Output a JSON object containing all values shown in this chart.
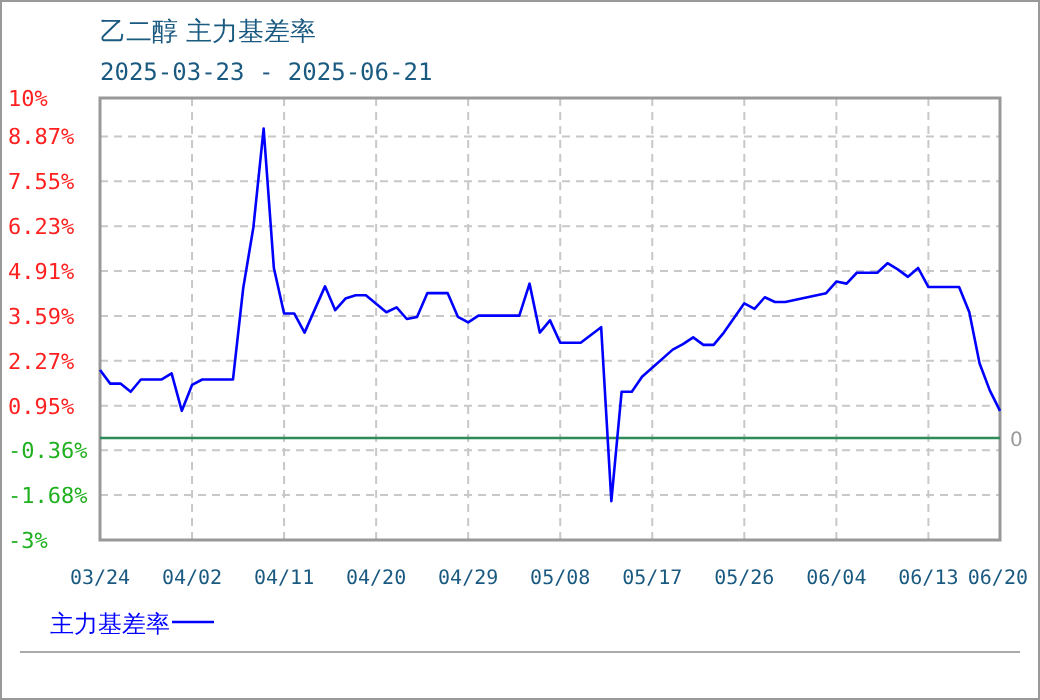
{
  "chart_data": {
    "type": "line",
    "title": "乙二醇 主力基差率",
    "subtitle": "2025-03-23 - 2025-06-21",
    "x": [
      "2025-03-24",
      "2025-03-25",
      "2025-03-26",
      "2025-03-27",
      "2025-03-28",
      "2025-03-30",
      "2025-03-31",
      "2025-04-01",
      "2025-04-02",
      "2025-04-03",
      "2025-04-06",
      "2025-04-07",
      "2025-04-08",
      "2025-04-09",
      "2025-04-10",
      "2025-04-11",
      "2025-04-12",
      "2025-04-13",
      "2025-04-15",
      "2025-04-16",
      "2025-04-17",
      "2025-04-18",
      "2025-04-19",
      "2025-04-21",
      "2025-04-22",
      "2025-04-23",
      "2025-04-24",
      "2025-04-25",
      "2025-04-27",
      "2025-04-28",
      "2025-04-29",
      "2025-04-30",
      "2025-05-04",
      "2025-05-05",
      "2025-05-06",
      "2025-05-07",
      "2025-05-08",
      "2025-05-10",
      "2025-05-12",
      "2025-05-13",
      "2025-05-14",
      "2025-05-15",
      "2025-05-16",
      "2025-05-19",
      "2025-05-20",
      "2025-05-21",
      "2025-05-22",
      "2025-05-23",
      "2025-05-24",
      "2025-05-26",
      "2025-05-27",
      "2025-05-28",
      "2025-05-29",
      "2025-05-30",
      "2025-06-03",
      "2025-06-04",
      "2025-06-05",
      "2025-06-06",
      "2025-06-08",
      "2025-06-09",
      "2025-06-10",
      "2025-06-11",
      "2025-06-12",
      "2025-06-13",
      "2025-06-16",
      "2025-06-17",
      "2025-06-18",
      "2025-06-19",
      "2025-06-20"
    ],
    "series": [
      {
        "name": "主力基差率",
        "color": "#0000ff",
        "values": [
          2.0,
          1.6,
          1.6,
          1.36,
          1.72,
          1.72,
          1.9,
          0.8,
          1.56,
          1.72,
          1.72,
          4.4,
          6.2,
          9.1,
          5.0,
          3.66,
          3.66,
          3.1,
          4.46,
          3.76,
          4.1,
          4.2,
          4.2,
          3.7,
          3.84,
          3.5,
          3.56,
          4.26,
          4.26,
          3.56,
          3.4,
          3.6,
          3.6,
          4.54,
          3.1,
          3.46,
          2.8,
          2.8,
          3.26,
          -1.86,
          1.36,
          1.36,
          1.8,
          2.6,
          2.76,
          2.96,
          2.74,
          2.74,
          3.1,
          3.96,
          3.8,
          4.14,
          4.0,
          4.0,
          4.26,
          4.6,
          4.54,
          4.86,
          4.86,
          5.14,
          4.96,
          4.74,
          5.0,
          4.44,
          4.44,
          3.7,
          2.2,
          1.4,
          0.8
        ]
      }
    ],
    "xlim": [
      "2025-03-24",
      "2025-06-20"
    ],
    "xticks": [
      {
        "value": "2025-03-24",
        "label": "03/24"
      },
      {
        "value": "2025-04-02",
        "label": "04/02"
      },
      {
        "value": "2025-04-11",
        "label": "04/11"
      },
      {
        "value": "2025-04-20",
        "label": "04/20"
      },
      {
        "value": "2025-04-29",
        "label": "04/29"
      },
      {
        "value": "2025-05-08",
        "label": "05/08"
      },
      {
        "value": "2025-05-17",
        "label": "05/17"
      },
      {
        "value": "2025-05-26",
        "label": "05/26"
      },
      {
        "value": "2025-06-04",
        "label": "06/04"
      },
      {
        "value": "2025-06-13",
        "label": "06/13"
      },
      {
        "value": "2025-06-20",
        "label": "06/20"
      }
    ],
    "ylim": [
      -3,
      10
    ],
    "yticks": [
      {
        "value": 10,
        "label": "10%"
      },
      {
        "value": 8.87,
        "label": "8.87%"
      },
      {
        "value": 7.55,
        "label": "7.55%"
      },
      {
        "value": 6.23,
        "label": "6.23%"
      },
      {
        "value": 4.91,
        "label": "4.91%"
      },
      {
        "value": 3.59,
        "label": "3.59%"
      },
      {
        "value": 2.27,
        "label": "2.27%"
      },
      {
        "value": 0.95,
        "label": "0.95%"
      },
      {
        "value": -0.36,
        "label": "-0.36%"
      },
      {
        "value": -1.68,
        "label": "-1.68%"
      },
      {
        "value": -3,
        "label": "-3%"
      }
    ],
    "ref_lines": [
      {
        "axis": "y",
        "value": 0,
        "label": "0",
        "color": "#2e8b57"
      }
    ],
    "grid": true,
    "legend": "bottom left",
    "marker": "none",
    "line_style": "solid"
  }
}
